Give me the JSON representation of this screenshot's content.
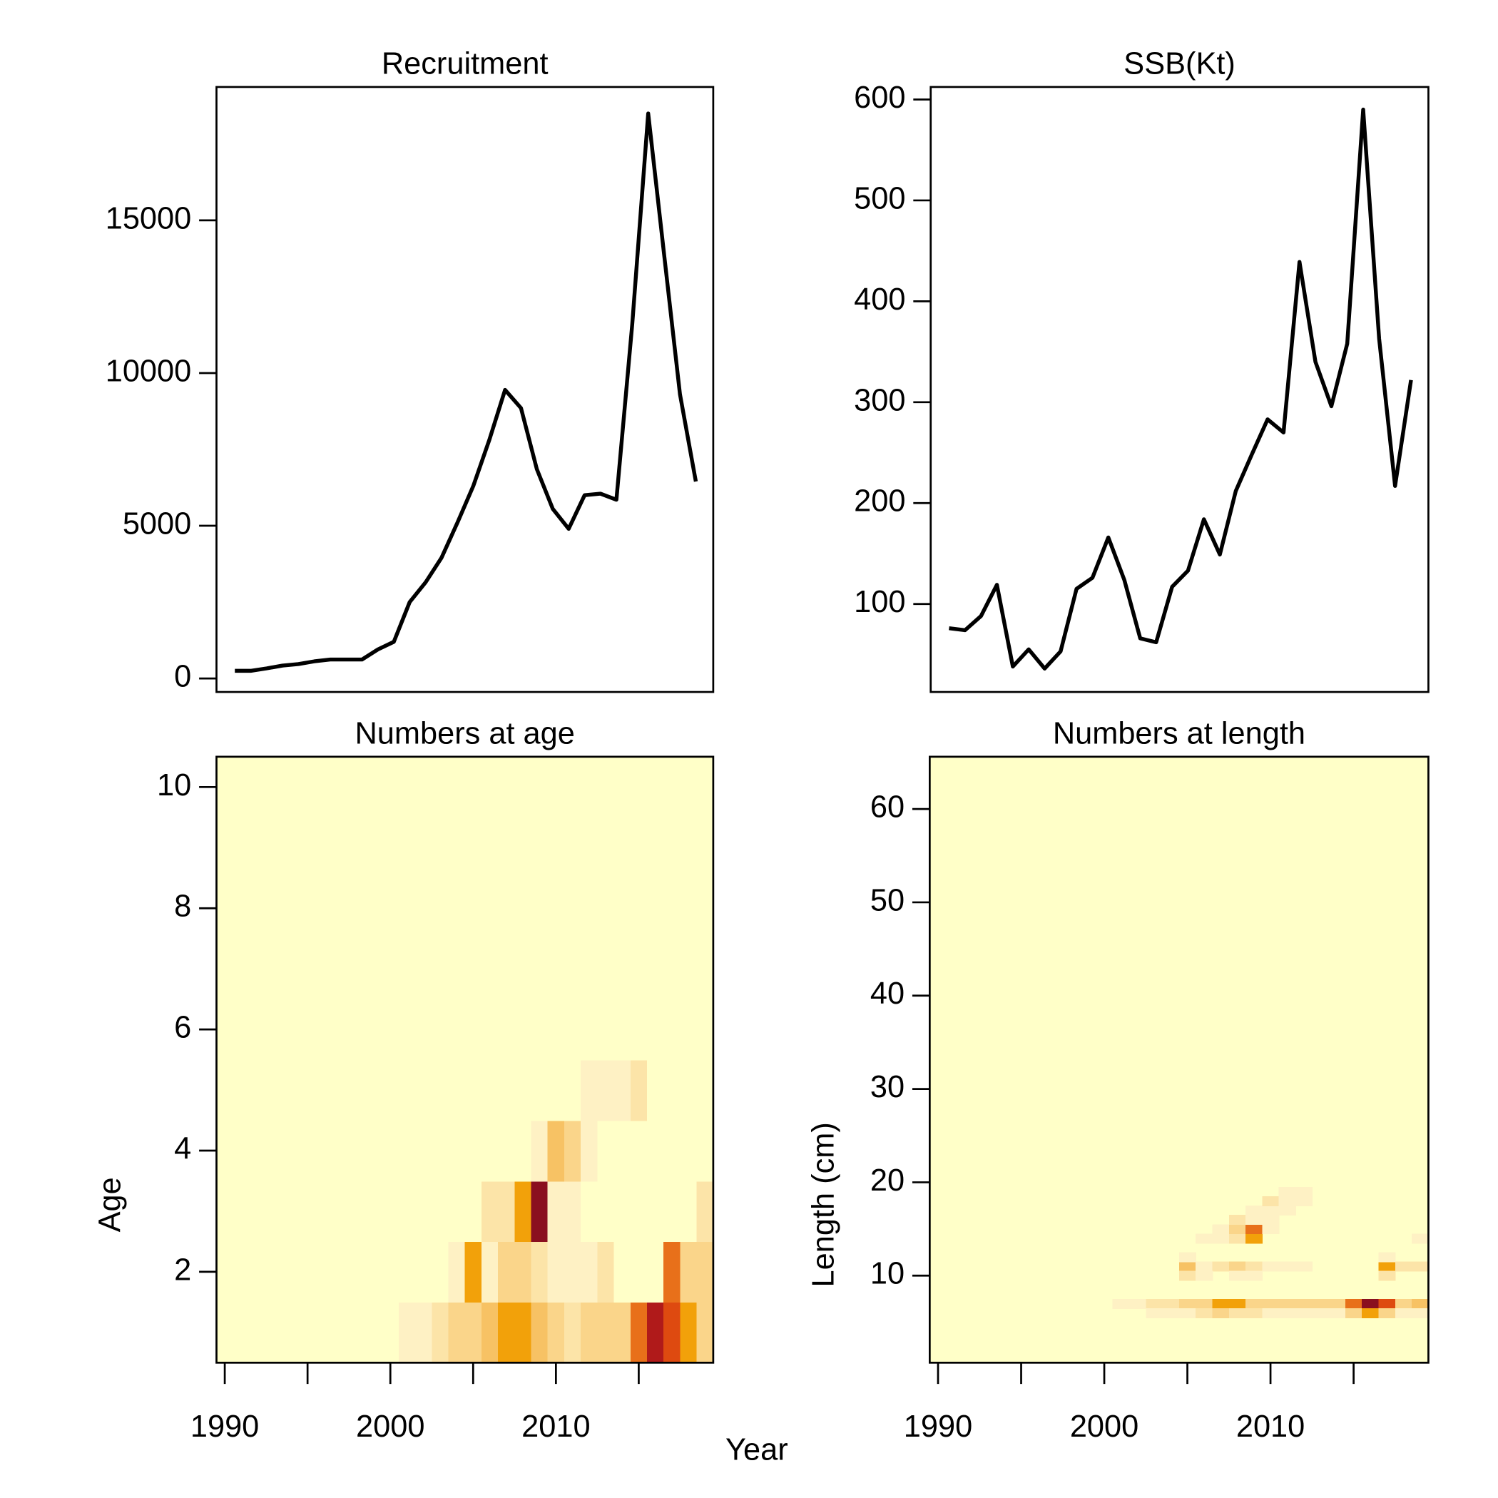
{
  "xlabel": "Year",
  "chart_data": [
    {
      "type": "line",
      "title": "Recruitment",
      "color": "#000000",
      "x": [
        1990,
        1991,
        1992,
        1993,
        1994,
        1995,
        1996,
        1997,
        1998,
        1999,
        2000,
        2001,
        2002,
        2003,
        2004,
        2005,
        2006,
        2007,
        2008,
        2009,
        2010,
        2011,
        2012,
        2013,
        2014,
        2015,
        2016,
        2017,
        2018,
        2019
      ],
      "values": [
        250,
        250,
        330,
        420,
        470,
        560,
        620,
        620,
        620,
        950,
        1200,
        2500,
        3150,
        3950,
        5100,
        6300,
        7800,
        9450,
        8850,
        6850,
        5550,
        4900,
        6000,
        6050,
        5850,
        11600,
        18500,
        13900,
        9300,
        6450
      ],
      "xlim": [
        1988.845,
        2020.094
      ],
      "ylim": [
        -443,
        19367
      ],
      "yticks": [
        0,
        5000,
        10000,
        15000
      ]
    },
    {
      "type": "line",
      "title": "SSB(Kt)",
      "color": "#000000",
      "x": [
        1990,
        1991,
        1992,
        1993,
        1994,
        1995,
        1996,
        1997,
        1998,
        1999,
        2000,
        2001,
        2002,
        2003,
        2004,
        2005,
        2006,
        2007,
        2008,
        2009,
        2010,
        2011,
        2012,
        2013,
        2014,
        2015,
        2016,
        2017,
        2018,
        2019
      ],
      "values": [
        76,
        74,
        88,
        119,
        38,
        55,
        36,
        53,
        115,
        126,
        166,
        124,
        66,
        62,
        117,
        133,
        184,
        149,
        212,
        248,
        283,
        270,
        439,
        340,
        296,
        358,
        590,
        363,
        217,
        322
      ],
      "xlim": [
        1988.845,
        2020.094
      ],
      "ylim": [
        12.8,
        612.4
      ],
      "yticks": [
        100,
        200,
        300,
        400,
        500,
        600
      ]
    },
    {
      "type": "heatmap",
      "title": "Numbers at age",
      "ylabel": "Age",
      "x": [
        1990,
        1991,
        1992,
        1993,
        1994,
        1995,
        1996,
        1997,
        1998,
        1999,
        2000,
        2001,
        2002,
        2003,
        2004,
        2005,
        2006,
        2007,
        2008,
        2009,
        2010,
        2011,
        2012,
        2013,
        2014,
        2015,
        2016,
        2017,
        2018,
        2019
      ],
      "y": [
        1,
        2,
        3,
        4,
        5,
        6,
        7,
        8,
        9,
        10
      ],
      "z": [
        [
          0,
          0,
          0,
          0,
          0,
          0,
          0,
          0,
          0,
          0,
          0,
          1,
          1,
          2,
          3,
          3,
          4,
          5,
          5,
          4,
          3,
          2,
          3,
          3,
          3,
          6,
          8,
          7,
          5,
          3
        ],
        [
          0,
          0,
          0,
          0,
          0,
          0,
          0,
          0,
          0,
          0,
          0,
          0,
          0,
          0,
          1,
          5,
          1,
          3,
          3,
          2,
          1,
          1,
          1,
          2,
          0,
          0,
          0,
          6,
          3,
          3
        ],
        [
          0,
          0,
          0,
          0,
          0,
          0,
          0,
          0,
          0,
          0,
          0,
          0,
          0,
          0,
          0,
          0,
          2,
          2,
          5,
          9,
          1,
          1,
          0,
          0,
          0,
          0,
          0,
          0,
          0,
          2
        ],
        [
          0,
          0,
          0,
          0,
          0,
          0,
          0,
          0,
          0,
          0,
          0,
          0,
          0,
          0,
          0,
          0,
          0,
          0,
          0,
          1,
          4,
          3,
          1,
          0,
          0,
          0,
          0,
          0,
          0,
          0
        ],
        [
          0,
          0,
          0,
          0,
          0,
          0,
          0,
          0,
          0,
          0,
          0,
          0,
          0,
          0,
          0,
          0,
          0,
          0,
          0,
          0,
          0,
          0,
          1,
          1,
          1,
          2,
          0,
          0,
          0,
          0
        ],
        [
          0,
          0,
          0,
          0,
          0,
          0,
          0,
          0,
          0,
          0,
          0,
          0,
          0,
          0,
          0,
          0,
          0,
          0,
          0,
          0,
          0,
          0,
          0,
          0,
          0,
          0,
          0,
          0,
          0,
          0
        ],
        [
          0,
          0,
          0,
          0,
          0,
          0,
          0,
          0,
          0,
          0,
          0,
          0,
          0,
          0,
          0,
          0,
          0,
          0,
          0,
          0,
          0,
          0,
          0,
          0,
          0,
          0,
          0,
          0,
          0,
          0
        ],
        [
          0,
          0,
          0,
          0,
          0,
          0,
          0,
          0,
          0,
          0,
          0,
          0,
          0,
          0,
          0,
          0,
          0,
          0,
          0,
          0,
          0,
          0,
          0,
          0,
          0,
          0,
          0,
          0,
          0,
          0
        ],
        [
          0,
          0,
          0,
          0,
          0,
          0,
          0,
          0,
          0,
          0,
          0,
          0,
          0,
          0,
          0,
          0,
          0,
          0,
          0,
          0,
          0,
          0,
          0,
          0,
          0,
          0,
          0,
          0,
          0,
          0
        ],
        [
          0,
          0,
          0,
          0,
          0,
          0,
          0,
          0,
          0,
          0,
          0,
          0,
          0,
          0,
          0,
          0,
          0,
          0,
          0,
          0,
          0,
          0,
          0,
          0,
          0,
          0,
          0,
          0,
          0,
          0
        ]
      ],
      "zlim": [
        0,
        9
      ],
      "palette": [
        "#FFFFC8",
        "#FEF1C4",
        "#FCE4A8",
        "#FAD58A",
        "#F7C264",
        "#F2A10A",
        "#E8701A",
        "#DE4A10",
        "#B01A1A",
        "#8A0F1F"
      ],
      "xlim": [
        1989.5,
        2019.5
      ],
      "ylim": [
        0.5,
        10.5
      ],
      "xticks": [
        1990,
        2000,
        2010
      ],
      "xminor_ticks": [
        1995,
        2005,
        2015
      ],
      "yticks": [
        2,
        4,
        6,
        8,
        10
      ]
    },
    {
      "type": "tiles",
      "title": "Numbers at length",
      "ylabel": "Length (cm)",
      "cells": [
        {
          "x": 2001,
          "y": 7,
          "value": 1
        },
        {
          "x": 2002,
          "y": 7,
          "value": 1
        },
        {
          "x": 2003,
          "y": 7,
          "value": 2
        },
        {
          "x": 2004,
          "y": 7,
          "value": 2
        },
        {
          "x": 2005,
          "y": 7,
          "value": 3
        },
        {
          "x": 2006,
          "y": 7,
          "value": 3
        },
        {
          "x": 2007,
          "y": 7,
          "value": 5
        },
        {
          "x": 2008,
          "y": 7,
          "value": 5
        },
        {
          "x": 2009,
          "y": 7,
          "value": 3
        },
        {
          "x": 2010,
          "y": 7,
          "value": 3
        },
        {
          "x": 2011,
          "y": 7,
          "value": 3
        },
        {
          "x": 2012,
          "y": 7,
          "value": 3
        },
        {
          "x": 2013,
          "y": 7,
          "value": 3
        },
        {
          "x": 2014,
          "y": 7,
          "value": 3
        },
        {
          "x": 2015,
          "y": 7,
          "value": 6
        },
        {
          "x": 2016,
          "y": 7,
          "value": 9
        },
        {
          "x": 2017,
          "y": 7,
          "value": 7
        },
        {
          "x": 2018,
          "y": 7,
          "value": 3
        },
        {
          "x": 2019,
          "y": 7,
          "value": 4
        },
        {
          "x": 2003,
          "y": 6,
          "value": 1
        },
        {
          "x": 2004,
          "y": 6,
          "value": 1
        },
        {
          "x": 2005,
          "y": 6,
          "value": 1
        },
        {
          "x": 2006,
          "y": 6,
          "value": 2
        },
        {
          "x": 2007,
          "y": 6,
          "value": 3
        },
        {
          "x": 2008,
          "y": 6,
          "value": 2
        },
        {
          "x": 2009,
          "y": 6,
          "value": 2
        },
        {
          "x": 2010,
          "y": 6,
          "value": 1
        },
        {
          "x": 2011,
          "y": 6,
          "value": 1
        },
        {
          "x": 2012,
          "y": 6,
          "value": 1
        },
        {
          "x": 2013,
          "y": 6,
          "value": 1
        },
        {
          "x": 2014,
          "y": 6,
          "value": 1
        },
        {
          "x": 2015,
          "y": 6,
          "value": 3
        },
        {
          "x": 2016,
          "y": 6,
          "value": 5
        },
        {
          "x": 2017,
          "y": 6,
          "value": 3
        },
        {
          "x": 2018,
          "y": 6,
          "value": 1
        },
        {
          "x": 2019,
          "y": 6,
          "value": 1
        },
        {
          "x": 2005,
          "y": 11,
          "value": 4
        },
        {
          "x": 2006,
          "y": 11,
          "value": 1
        },
        {
          "x": 2007,
          "y": 11,
          "value": 2
        },
        {
          "x": 2008,
          "y": 11,
          "value": 3
        },
        {
          "x": 2009,
          "y": 11,
          "value": 2
        },
        {
          "x": 2010,
          "y": 11,
          "value": 1
        },
        {
          "x": 2011,
          "y": 11,
          "value": 1
        },
        {
          "x": 2012,
          "y": 11,
          "value": 1
        },
        {
          "x": 2017,
          "y": 11,
          "value": 5
        },
        {
          "x": 2018,
          "y": 11,
          "value": 2
        },
        {
          "x": 2019,
          "y": 11,
          "value": 2
        },
        {
          "x": 2005,
          "y": 10,
          "value": 2
        },
        {
          "x": 2006,
          "y": 10,
          "value": 1
        },
        {
          "x": 2008,
          "y": 10,
          "value": 1
        },
        {
          "x": 2009,
          "y": 10,
          "value": 1
        },
        {
          "x": 2017,
          "y": 10,
          "value": 2
        },
        {
          "x": 2005,
          "y": 12,
          "value": 1
        },
        {
          "x": 2017,
          "y": 12,
          "value": 1
        },
        {
          "x": 2006,
          "y": 14,
          "value": 1
        },
        {
          "x": 2007,
          "y": 14,
          "value": 1
        },
        {
          "x": 2008,
          "y": 14,
          "value": 2
        },
        {
          "x": 2009,
          "y": 14,
          "value": 5
        },
        {
          "x": 2019,
          "y": 14,
          "value": 1
        },
        {
          "x": 2007,
          "y": 15,
          "value": 1
        },
        {
          "x": 2008,
          "y": 15,
          "value": 3
        },
        {
          "x": 2009,
          "y": 15,
          "value": 6
        },
        {
          "x": 2010,
          "y": 15,
          "value": 1
        },
        {
          "x": 2008,
          "y": 16,
          "value": 2
        },
        {
          "x": 2009,
          "y": 16,
          "value": 1
        },
        {
          "x": 2010,
          "y": 16,
          "value": 1
        },
        {
          "x": 2009,
          "y": 17,
          "value": 1
        },
        {
          "x": 2010,
          "y": 17,
          "value": 1
        },
        {
          "x": 2011,
          "y": 17,
          "value": 1
        },
        {
          "x": 2010,
          "y": 18,
          "value": 2
        },
        {
          "x": 2011,
          "y": 18,
          "value": 1
        },
        {
          "x": 2012,
          "y": 18,
          "value": 1
        },
        {
          "x": 2011,
          "y": 19,
          "value": 1
        },
        {
          "x": 2012,
          "y": 19,
          "value": 1
        }
      ],
      "zlim": [
        0,
        9
      ],
      "palette": [
        "#FFFFC8",
        "#FEF1C4",
        "#FCE4A8",
        "#FAD58A",
        "#F7C264",
        "#F2A10A",
        "#E8701A",
        "#DE4A10",
        "#B01A1A",
        "#8A0F1F"
      ],
      "xlim": [
        1989.5,
        2019.5
      ],
      "ylim": [
        0.67,
        65.6
      ],
      "xticks": [
        1990,
        2000,
        2010
      ],
      "xminor_ticks": [
        1995,
        2005,
        2015
      ],
      "yticks": [
        10,
        20,
        30,
        40,
        50,
        60
      ]
    }
  ]
}
